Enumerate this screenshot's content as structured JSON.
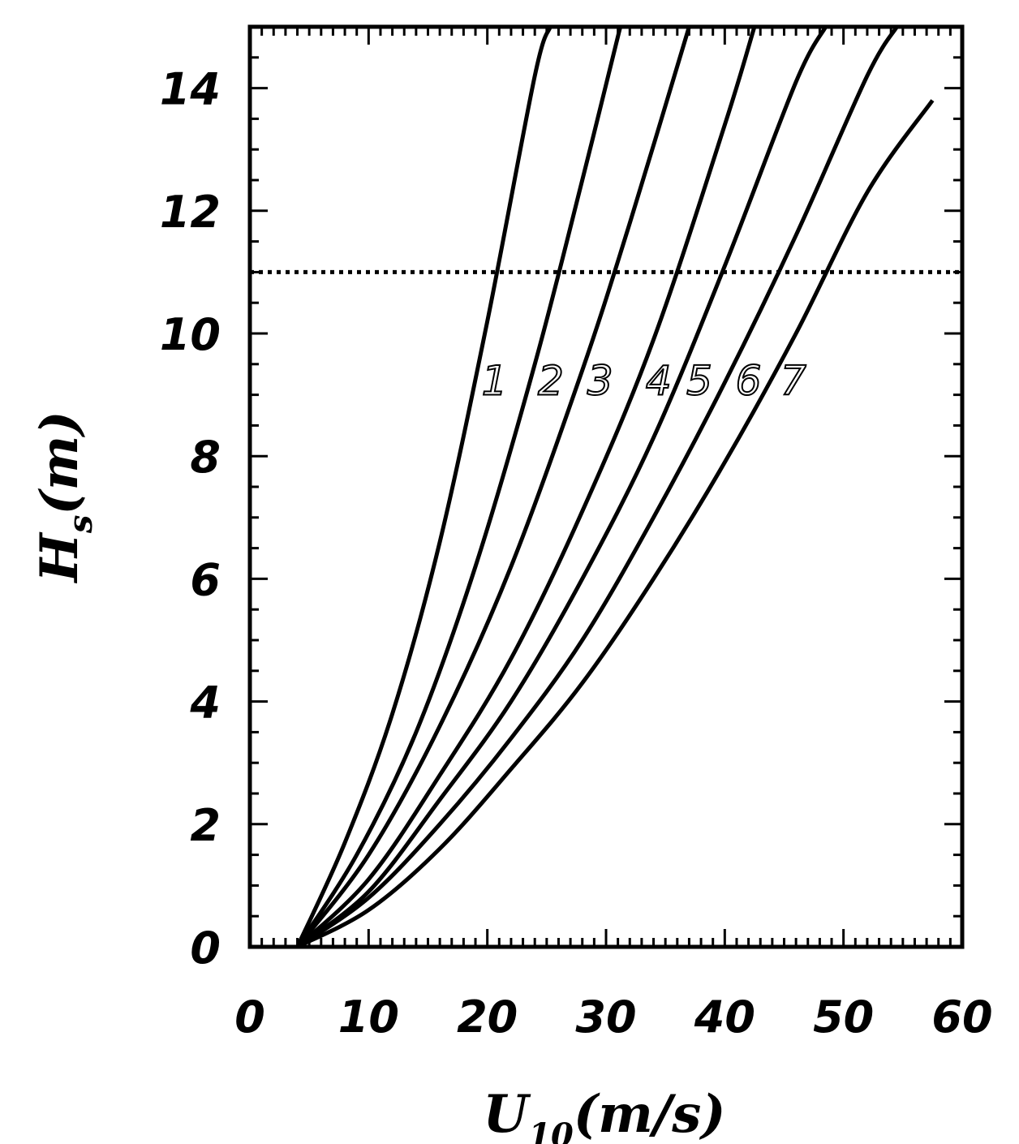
{
  "chart_data": {
    "type": "line",
    "xlabel": {
      "main": "U",
      "sub": "10",
      "rest": "(m/s)"
    },
    "ylabel": {
      "main": "H",
      "sub": "s",
      "rest": "(m)"
    },
    "xlim": [
      0,
      60
    ],
    "ylim": [
      0,
      15
    ],
    "x_ticks": [
      "0",
      "10",
      "20",
      "30",
      "40",
      "50",
      "60"
    ],
    "y_ticks": [
      "0",
      "2",
      "4",
      "6",
      "8",
      "10",
      "12",
      "14"
    ],
    "reference_line": {
      "y": 11,
      "style": "dotted"
    },
    "series": [
      {
        "name": "1",
        "x": [
          4,
          8,
          12,
          16,
          20,
          24,
          25.3
        ],
        "y": [
          0,
          1.7,
          3.8,
          6.6,
          10.2,
          14.2,
          15
        ]
      },
      {
        "name": "2",
        "x": [
          4,
          9,
          14,
          19,
          24,
          28,
          31.2
        ],
        "y": [
          0,
          1.5,
          3.5,
          6.2,
          9.5,
          12.5,
          15
        ]
      },
      {
        "name": "3",
        "x": [
          4,
          10,
          16,
          22,
          28,
          32,
          37
        ],
        "y": [
          0,
          1.5,
          3.6,
          6.2,
          9.4,
          11.8,
          15
        ]
      },
      {
        "name": "4",
        "x": [
          4,
          10,
          16,
          22,
          28,
          34,
          40,
          42.5
        ],
        "y": [
          0,
          1.1,
          2.8,
          4.7,
          7.1,
          9.9,
          13.4,
          15
        ]
      },
      {
        "name": "5",
        "x": [
          4,
          10,
          16,
          22,
          28,
          34,
          40,
          46,
          48.5
        ],
        "y": [
          0,
          0.9,
          2.4,
          4.0,
          6.0,
          8.3,
          11.1,
          14.1,
          15
        ]
      },
      {
        "name": "6",
        "x": [
          4,
          10,
          16,
          22,
          28,
          34,
          40,
          46,
          52,
          54.5
        ],
        "y": [
          0,
          0.8,
          2.0,
          3.4,
          5.0,
          7.0,
          9.2,
          11.6,
          14.2,
          15
        ]
      },
      {
        "name": "7",
        "x": [
          4,
          10,
          16,
          22,
          28,
          34,
          40,
          46,
          52,
          57.5
        ],
        "y": [
          0,
          0.6,
          1.6,
          2.9,
          4.3,
          6.0,
          7.9,
          10.0,
          12.3,
          13.8
        ]
      }
    ],
    "curve_labels": [
      "1",
      "2",
      "3",
      "4",
      "5",
      "6",
      "7"
    ],
    "grid": false,
    "legend": "none"
  }
}
